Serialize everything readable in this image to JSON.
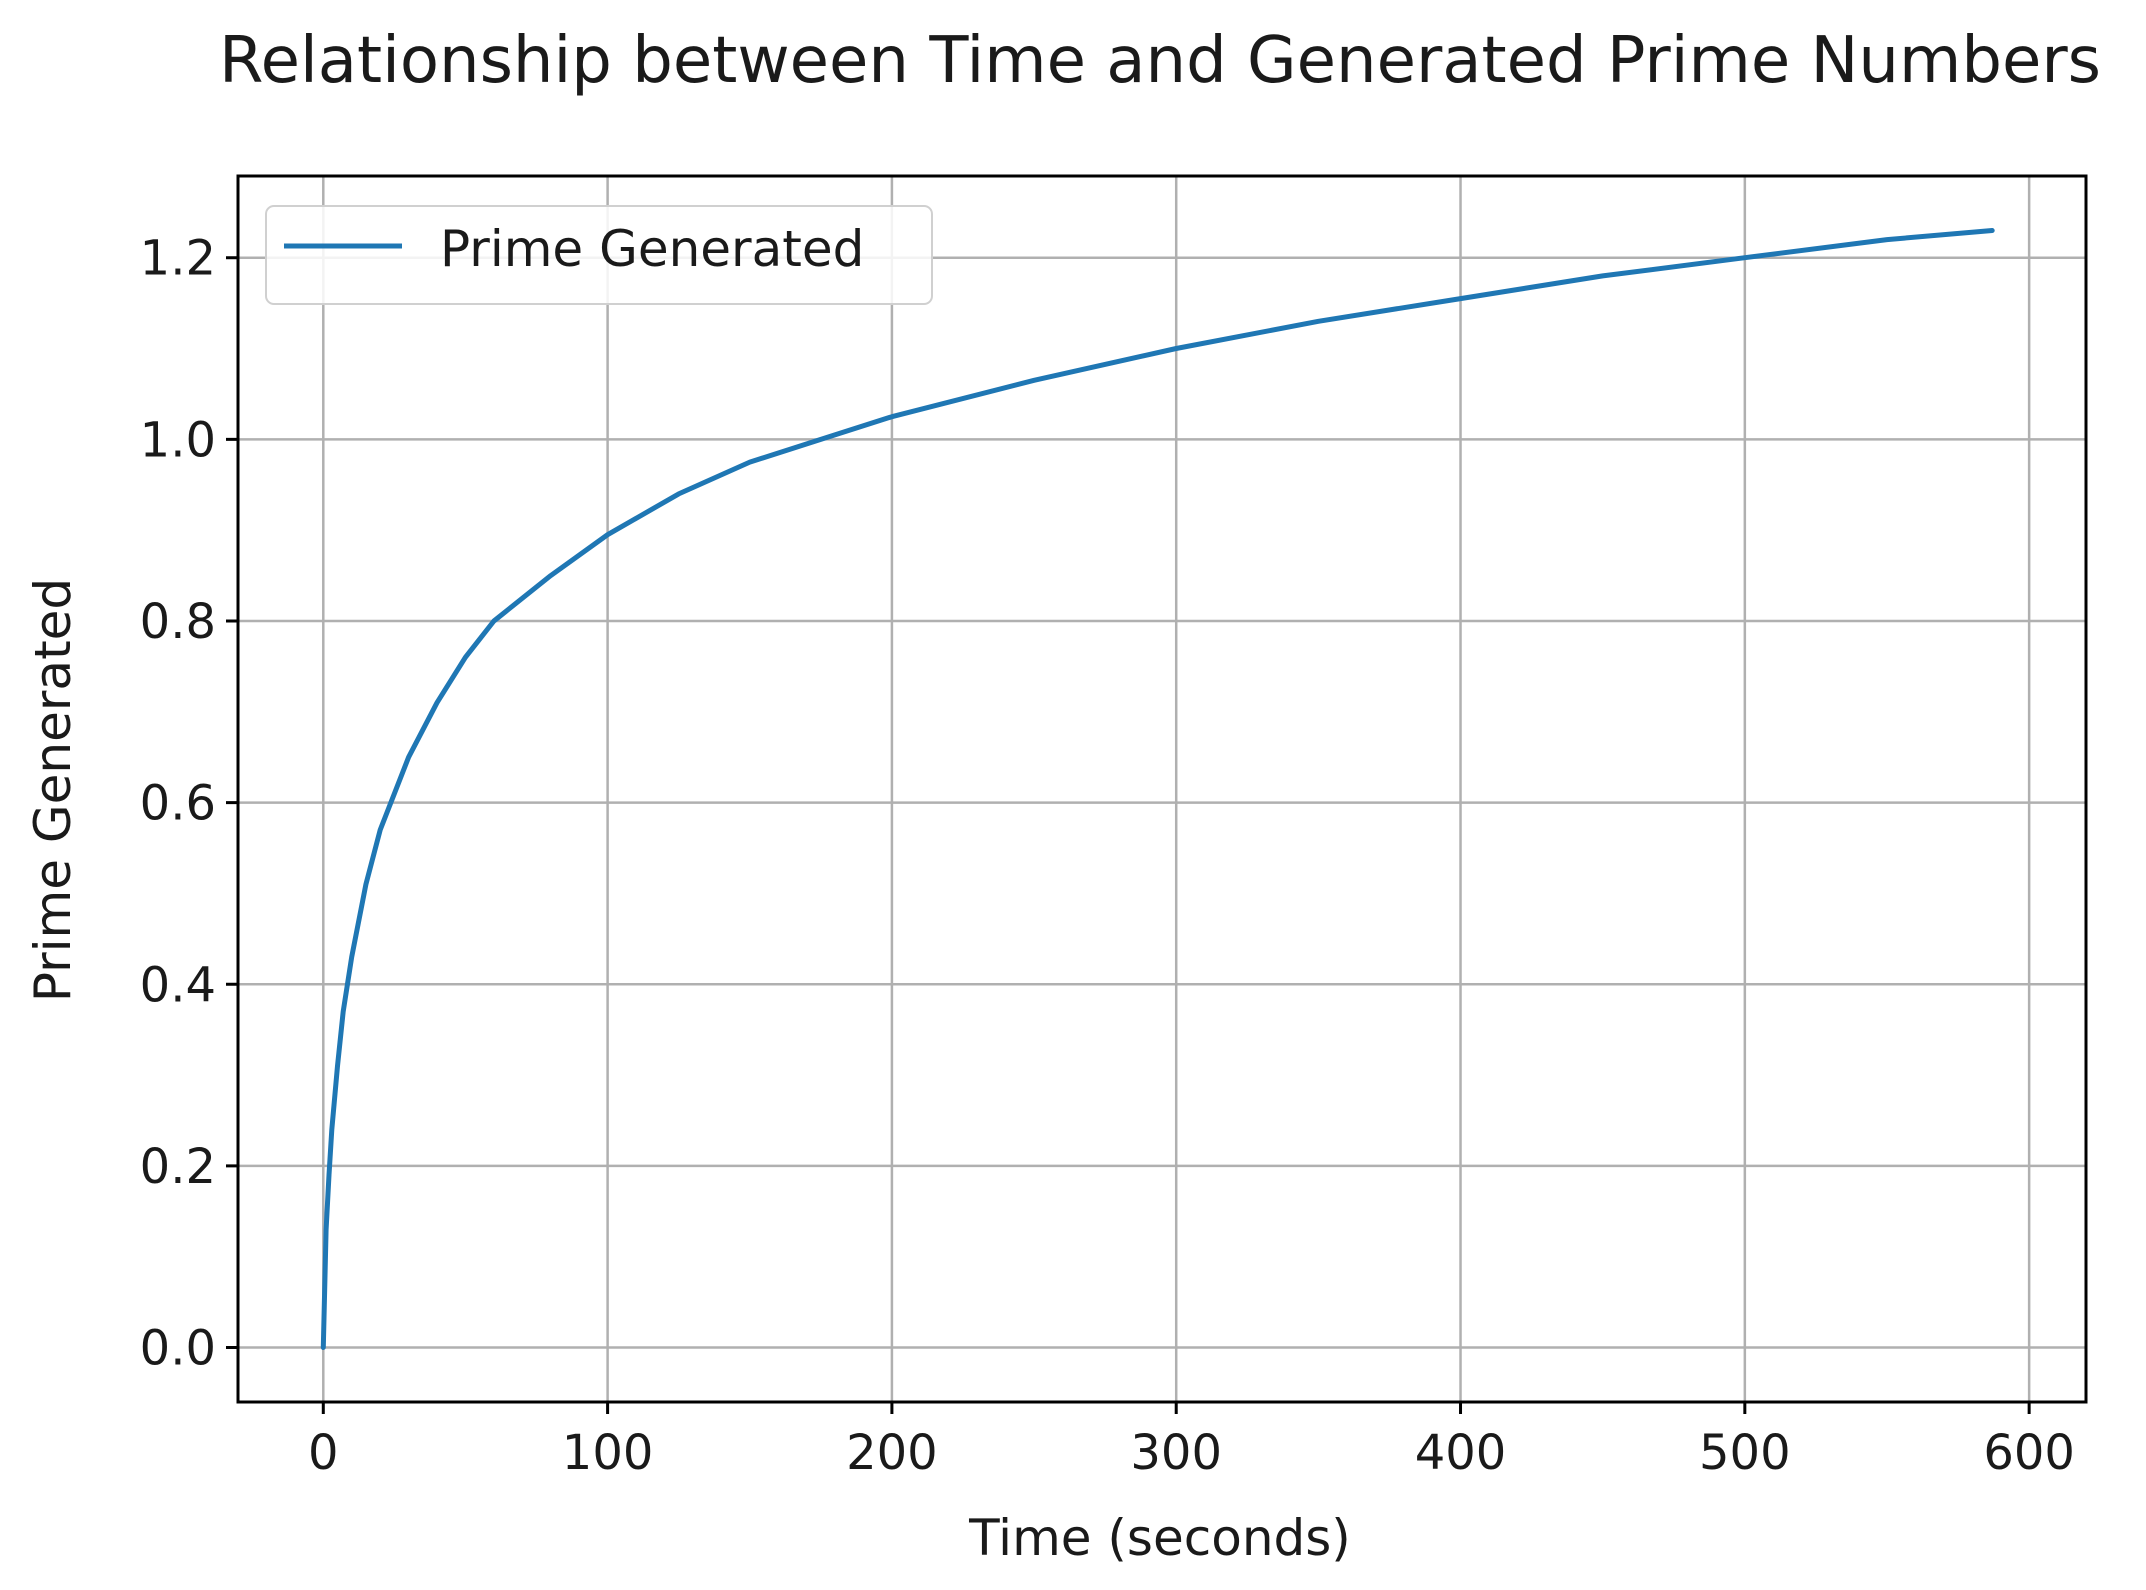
{
  "chart_data": {
    "type": "line",
    "title": "Relationship between Time and Generated Prime Numbers",
    "xlabel": "Time (seconds)",
    "ylabel": "Prime Generated",
    "xlim": [
      -30,
      620
    ],
    "ylim": [
      -0.06,
      1.29
    ],
    "x_ticks": [
      0,
      100,
      200,
      300,
      400,
      500,
      600
    ],
    "y_ticks": [
      0.0,
      0.2,
      0.4,
      0.6,
      0.8,
      1.0,
      1.2
    ],
    "x_tick_labels": [
      "0",
      "100",
      "200",
      "300",
      "400",
      "500",
      "600"
    ],
    "y_tick_labels": [
      "0.0",
      "0.2",
      "0.4",
      "0.6",
      "0.8",
      "1.0",
      "1.2"
    ],
    "grid": true,
    "legend_position": "upper-left",
    "series": [
      {
        "name": "Prime Generated",
        "color": "#1f77b4",
        "x": [
          0,
          1,
          2,
          3,
          5,
          7,
          10,
          15,
          20,
          30,
          40,
          50,
          60,
          80,
          100,
          125,
          150,
          175,
          200,
          250,
          300,
          350,
          400,
          450,
          500,
          550,
          587
        ],
        "y": [
          0.0,
          0.13,
          0.19,
          0.24,
          0.31,
          0.37,
          0.43,
          0.51,
          0.57,
          0.65,
          0.71,
          0.76,
          0.8,
          0.85,
          0.895,
          0.94,
          0.975,
          1.0,
          1.025,
          1.065,
          1.1,
          1.13,
          1.155,
          1.18,
          1.2,
          1.22,
          1.23
        ]
      }
    ]
  }
}
